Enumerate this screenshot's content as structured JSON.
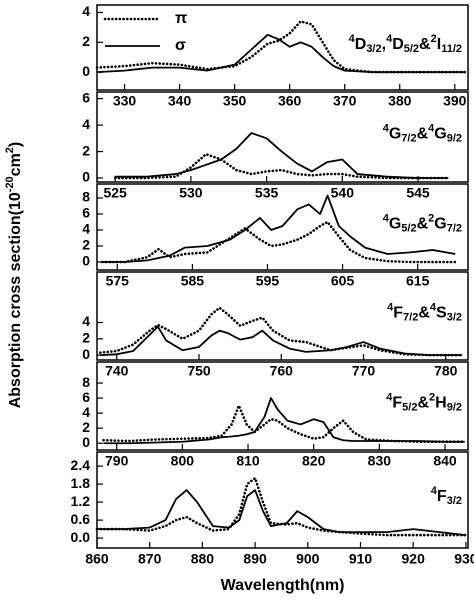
{
  "ylabel": [
    {
      "text": "Absorption cross section(10"
    },
    {
      "sup": "-20"
    },
    {
      "text": "cm"
    },
    {
      "sup": "2"
    },
    {
      "text": ")"
    }
  ],
  "chart_data": [
    {
      "type": "line",
      "label": [
        {
          "sup": "4"
        },
        {
          "text": "D"
        },
        {
          "sub": "3/2"
        },
        {
          "text": ","
        },
        {
          "sup": "4"
        },
        {
          "text": "D"
        },
        {
          "sub": "5/2"
        },
        {
          "text": "&"
        },
        {
          "sup": "2"
        },
        {
          "text": "I"
        },
        {
          "sub": "11/2"
        }
      ],
      "x": [
        325,
        330,
        335,
        340,
        345,
        350,
        353,
        356,
        358,
        360,
        362,
        364,
        366,
        368,
        370,
        375,
        380,
        385,
        390,
        392
      ],
      "series": [
        {
          "name": "π",
          "color": "#000000",
          "style": "dotted",
          "values": [
            0.3,
            0.4,
            0.6,
            0.5,
            0.2,
            0.4,
            1.0,
            1.9,
            2.1,
            2.6,
            3.4,
            3.2,
            2.0,
            0.8,
            0.2,
            0,
            0,
            0,
            0,
            0
          ]
        },
        {
          "name": "σ",
          "color": "#000000",
          "style": "solid",
          "values": [
            0,
            0.1,
            0.3,
            0.3,
            0.1,
            0.5,
            1.5,
            2.5,
            2.2,
            1.7,
            2.0,
            1.7,
            1.0,
            0.4,
            0.1,
            0,
            0,
            0,
            0,
            0
          ]
        }
      ],
      "xlim": [
        325,
        392.4
      ],
      "xticks": [
        330,
        340,
        350,
        360,
        370,
        380,
        390
      ],
      "ylim": [
        -1.2,
        4.5
      ],
      "yticks": [
        0,
        2,
        4
      ],
      "legend": "upper left"
    },
    {
      "type": "line",
      "label": [
        {
          "sup": "4"
        },
        {
          "text": "G"
        },
        {
          "sub": "7/2"
        },
        {
          "text": "&"
        },
        {
          "sup": "4"
        },
        {
          "text": "G"
        },
        {
          "sub": "9/2"
        }
      ],
      "x": [
        525,
        527,
        529,
        530,
        531,
        532,
        533,
        534,
        535,
        536,
        537,
        538,
        539,
        540,
        541,
        543,
        545,
        547
      ],
      "series": [
        {
          "color": "#000000",
          "style": "dotted",
          "values": [
            0,
            0,
            0.1,
            0.8,
            1.8,
            1.4,
            0.6,
            0.3,
            0.5,
            0.6,
            0.3,
            0.2,
            0.3,
            0.3,
            0.1,
            0,
            0,
            0
          ]
        },
        {
          "color": "#000000",
          "style": "solid",
          "values": [
            0.1,
            0.1,
            0.3,
            0.6,
            1.0,
            1.4,
            2.2,
            3.4,
            3.0,
            2.0,
            1.1,
            0.5,
            1.2,
            1.4,
            0.3,
            0.1,
            0,
            0
          ]
        }
      ],
      "xlim": [
        523.8,
        548.3
      ],
      "xticks": [
        525,
        530,
        535,
        540,
        545
      ],
      "ylim": [
        -0.3,
        6.5
      ],
      "yticks": [
        0,
        2,
        4,
        6
      ]
    },
    {
      "type": "line",
      "label": [
        {
          "sup": "4"
        },
        {
          "text": "G"
        },
        {
          "sub": "5/2"
        },
        {
          "text": "&"
        },
        {
          "sup": "2"
        },
        {
          "text": "G"
        },
        {
          "sub": "7/2"
        }
      ],
      "x": [
        573,
        576,
        579,
        580.5,
        582,
        584,
        587,
        590,
        592,
        594,
        595.5,
        597,
        599,
        600.5,
        602,
        603,
        604.5,
        606,
        608,
        611,
        614,
        617,
        620
      ],
      "series": [
        {
          "color": "#000000",
          "style": "dotted",
          "values": [
            0,
            0,
            0.6,
            1.6,
            0.6,
            1.0,
            1.2,
            3.0,
            4.2,
            2.8,
            2.0,
            2.2,
            2.8,
            3.5,
            4.5,
            5.0,
            3.2,
            1.5,
            0.5,
            0.1,
            0,
            0,
            0
          ]
        },
        {
          "color": "#000000",
          "style": "solid",
          "values": [
            0,
            0,
            0.2,
            0.5,
            0.8,
            1.8,
            2.0,
            2.8,
            4.0,
            5.5,
            4.0,
            4.5,
            6.6,
            7.2,
            6.0,
            8.3,
            4.5,
            3.2,
            1.8,
            1.0,
            1.2,
            1.5,
            1.0
          ]
        }
      ],
      "xlim": [
        572.3,
        621.7
      ],
      "xticks": [
        575,
        585,
        595,
        605,
        615
      ],
      "ylim": [
        -1,
        9.75
      ],
      "yticks": [
        0,
        2,
        4,
        6,
        8
      ]
    },
    {
      "type": "line",
      "label": [
        {
          "sup": "4"
        },
        {
          "text": "F"
        },
        {
          "sub": "7/2"
        },
        {
          "text": "&"
        },
        {
          "sup": "4"
        },
        {
          "text": "S"
        },
        {
          "sub": "3/2"
        }
      ],
      "x": [
        738,
        740,
        742,
        744,
        745,
        746,
        748,
        750,
        751.5,
        752.5,
        753.5,
        755,
        756.5,
        757.7,
        759,
        761,
        763,
        766,
        768,
        770,
        772,
        775,
        778,
        782
      ],
      "series": [
        {
          "color": "#000000",
          "style": "dotted",
          "values": [
            0.3,
            0.5,
            1.3,
            3.0,
            3.7,
            3.2,
            2.0,
            3.0,
            5.0,
            5.8,
            5.0,
            3.6,
            4.2,
            4.6,
            3.0,
            1.8,
            1.6,
            0.6,
            0.9,
            1.2,
            0.6,
            0.1,
            0,
            0
          ]
        },
        {
          "color": "#000000",
          "style": "solid",
          "values": [
            0,
            0.1,
            0.5,
            2.5,
            3.5,
            1.8,
            0.6,
            1.0,
            2.4,
            3.0,
            2.7,
            1.9,
            2.2,
            3.0,
            1.8,
            0.8,
            0.4,
            0.6,
            1.0,
            1.6,
            0.8,
            0.2,
            0,
            0
          ]
        }
      ],
      "xlim": [
        737.6,
        782.7
      ],
      "xticks": [
        740,
        750,
        760,
        770,
        780
      ],
      "ylim": [
        -0.6,
        10.2
      ],
      "yticks": [
        0,
        2,
        4
      ]
    },
    {
      "type": "line",
      "label": [
        {
          "sup": "4"
        },
        {
          "text": "F"
        },
        {
          "sub": "5/2"
        },
        {
          "text": "&"
        },
        {
          "sup": "2"
        },
        {
          "text": "H"
        },
        {
          "sub": "9/2"
        }
      ],
      "x": [
        788,
        792,
        796,
        800,
        804,
        806,
        807.5,
        808.6,
        809.8,
        811,
        812.5,
        813.5,
        814.5,
        816,
        818,
        820,
        821.5,
        823,
        824.5,
        826,
        828,
        832,
        836,
        840,
        843
      ],
      "series": [
        {
          "color": "#000000",
          "style": "dotted",
          "values": [
            0.4,
            0.3,
            0.5,
            0.6,
            0.7,
            1.0,
            2.5,
            5.0,
            2.5,
            1.5,
            2.5,
            3.2,
            3.0,
            2.0,
            1.2,
            0.6,
            0.8,
            2.0,
            3.0,
            1.5,
            0.5,
            0.3,
            0.2,
            0.2,
            0.2
          ]
        },
        {
          "color": "#000000",
          "style": "solid",
          "values": [
            0,
            0,
            0.1,
            0.2,
            0.5,
            0.8,
            0.9,
            1.0,
            1.2,
            1.5,
            3.5,
            6.0,
            4.5,
            3.0,
            2.5,
            3.2,
            2.8,
            0.8,
            0.4,
            0.3,
            0.3,
            0.3,
            0.3,
            0.2,
            0.2
          ]
        }
      ],
      "xlim": [
        787,
        843.5
      ],
      "xticks": [
        790,
        800,
        810,
        820,
        830,
        840
      ],
      "ylim": [
        -0.9,
        10.8
      ],
      "yticks": [
        0,
        2,
        4,
        6,
        8
      ]
    },
    {
      "type": "line",
      "label": [
        {
          "sup": "4"
        },
        {
          "text": "F"
        },
        {
          "sub": "3/2"
        }
      ],
      "xlabel": "Wavelength(nm)",
      "x": [
        860,
        865,
        870,
        873,
        875,
        877,
        879,
        882,
        885,
        887,
        888.5,
        890,
        891.5,
        893,
        896,
        898,
        900,
        903,
        906,
        910,
        915,
        920,
        925,
        930
      ],
      "series": [
        {
          "color": "#000000",
          "style": "dotted",
          "values": [
            0.3,
            0.3,
            0.25,
            0.4,
            0.6,
            0.7,
            0.5,
            0.25,
            0.3,
            0.8,
            1.8,
            2.0,
            1.2,
            0.5,
            0.45,
            0.5,
            0.35,
            0.25,
            0.2,
            0.15,
            0.1,
            0.1,
            0.1,
            0.1
          ]
        },
        {
          "color": "#000000",
          "style": "solid",
          "values": [
            0.3,
            0.3,
            0.35,
            0.6,
            1.3,
            1.6,
            1.2,
            0.4,
            0.35,
            0.6,
            1.4,
            1.6,
            0.9,
            0.4,
            0.5,
            0.9,
            0.7,
            0.3,
            0.2,
            0.2,
            0.2,
            0.3,
            0.2,
            0.1
          ]
        }
      ],
      "xlim": [
        860,
        930.4
      ],
      "xticks": [
        860,
        870,
        880,
        890,
        900,
        910,
        920,
        930
      ],
      "ylim": [
        -0.33,
        2.87
      ],
      "yticks": [
        {
          "value": 0,
          "label": "0.0"
        },
        0.6,
        1.2,
        1.8,
        2.4
      ]
    }
  ]
}
